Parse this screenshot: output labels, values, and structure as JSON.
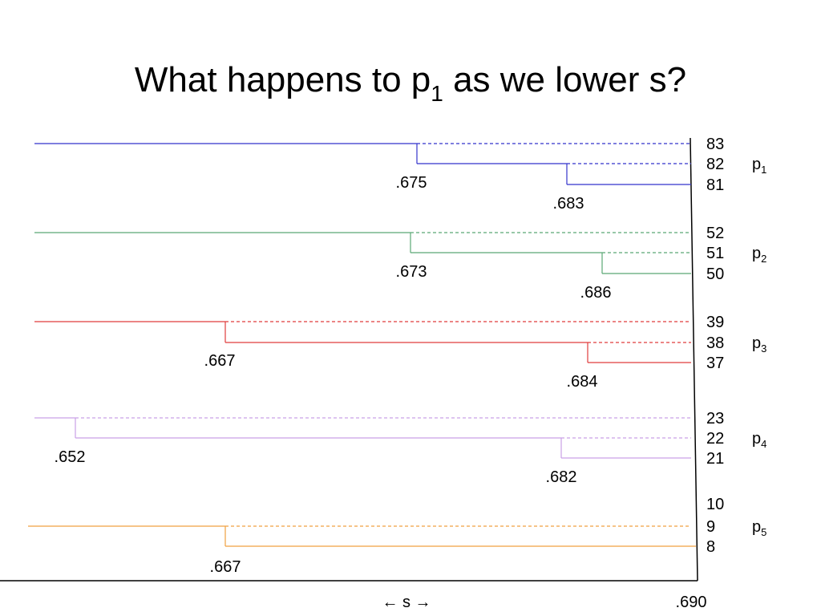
{
  "title": {
    "text": "What happens to p",
    "subscript": "1",
    "rest": " as we lower s?"
  },
  "groups": [
    {
      "name": "p",
      "subscript": "1",
      "rows": [
        "83",
        "82",
        "81"
      ],
      "splits": [
        ".675",
        ".683"
      ]
    },
    {
      "name": "p",
      "subscript": "2",
      "rows": [
        "52",
        "51",
        "50"
      ],
      "splits": [
        ".673",
        ".686"
      ]
    },
    {
      "name": "p",
      "subscript": "3",
      "rows": [
        "39",
        "38",
        "37"
      ],
      "splits": [
        ".667",
        ".684"
      ]
    },
    {
      "name": "p",
      "subscript": "4",
      "rows": [
        "23",
        "22",
        "21"
      ],
      "splits": [
        ".652",
        ".682"
      ]
    },
    {
      "name": "p",
      "subscript": "5",
      "rows": [
        "10",
        "9",
        "8"
      ],
      "splits": [
        ".667"
      ]
    }
  ],
  "axis": {
    "label": "← s →",
    "end": ".690"
  }
}
